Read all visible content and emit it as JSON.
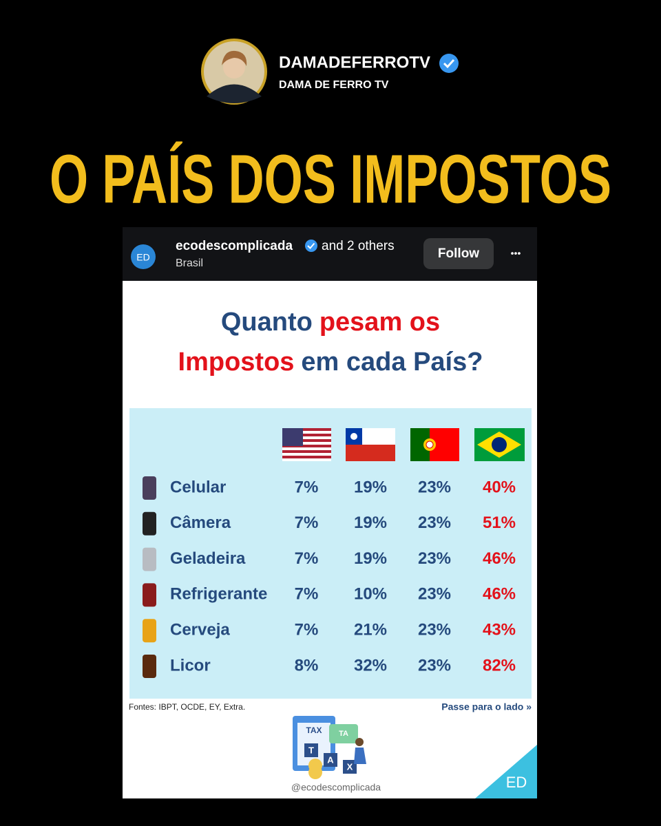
{
  "profile": {
    "username": "DAMADEFERROTV",
    "display_name": "DAMA DE FERRO TV"
  },
  "headline": "O PAÍS DOS IMPOSTOS",
  "post": {
    "account": "ecodescomplicada",
    "coauthors": "and 2 others",
    "location": "Brasil",
    "avatar": "ED",
    "follow": "Follow",
    "more": "•••"
  },
  "card": {
    "title": [
      [
        {
          "text": "Quanto",
          "highlight": false
        },
        {
          "text": "pesam os",
          "highlight": true
        }
      ],
      [
        {
          "text": "Impostos",
          "highlight": true
        },
        {
          "text": "em cada País?",
          "highlight": false
        }
      ]
    ],
    "table": {
      "rows": [
        [
          "Celular",
          "7%",
          "19%",
          "23%",
          "40%"
        ],
        [
          "Câmera",
          "7%",
          "19%",
          "23%",
          "51%"
        ],
        [
          "Geladeira",
          "7%",
          "19%",
          "23%",
          "46%"
        ],
        [
          "Refrigerante",
          "7%",
          "10%",
          "23%",
          "46%"
        ],
        [
          "Cerveja",
          "7%",
          "21%",
          "23%",
          "43%"
        ],
        [
          "Licor",
          "8%",
          "32%",
          "23%",
          "82%"
        ]
      ]
    },
    "sources": "Fontes: IBPT, OCDE, EY, Extra.",
    "swipe": "Passe para o lado »",
    "illustration": {
      "sign": "TAX",
      "tag": "TA",
      "blocks": [
        "T",
        "A",
        "X"
      ]
    },
    "handle": "@ecodescomplicada",
    "corner": "ED"
  }
}
